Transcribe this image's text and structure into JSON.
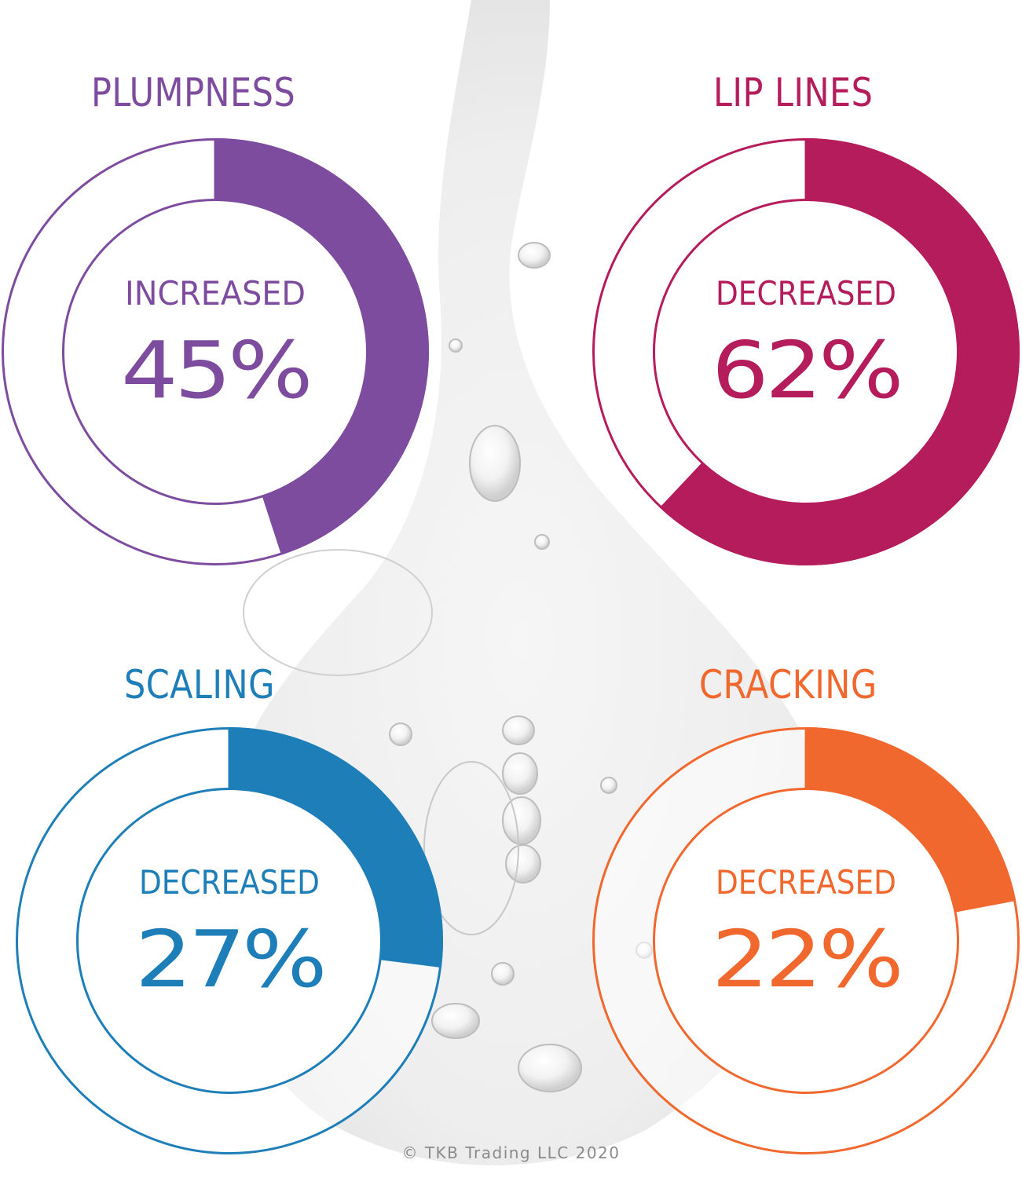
{
  "chart_data": [
    {
      "type": "pie",
      "title": "PLUMPNESS",
      "caption": "INCREASED",
      "value": 45,
      "value_label": "45%",
      "color": "#7d4c9e"
    },
    {
      "type": "pie",
      "title": "LIP LINES",
      "caption": "DECREASED",
      "value": 62,
      "value_label": "62%",
      "color": "#b51c5c"
    },
    {
      "type": "pie",
      "title": "SCALING",
      "caption": "DECREASED",
      "value": 27,
      "value_label": "27%",
      "color": "#1e7eb8"
    },
    {
      "type": "pie",
      "title": "CRACKING",
      "caption": "DECREASED",
      "value": 22,
      "value_label": "22%",
      "color": "#f0682e"
    }
  ],
  "footer": {
    "copyright": "© TKB Trading LLC 2020"
  }
}
